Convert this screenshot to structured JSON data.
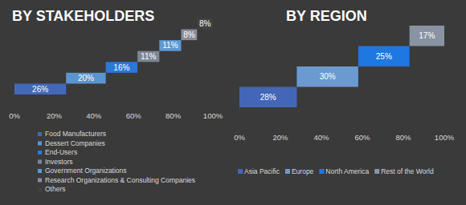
{
  "chart_data": [
    {
      "type": "waterfall",
      "title": "BY STAKEHOLDERS",
      "orientation": "horizontal",
      "categories": [
        "Food Manufacturers",
        "Dessert Companies",
        "End-Users",
        "Investors",
        "Government Organizations",
        "Research Organizations & Consulting Companies",
        "Others"
      ],
      "values": [
        26,
        20,
        16,
        11,
        11,
        8,
        8
      ],
      "value_labels": [
        "26%",
        "20%",
        "16%",
        "11%",
        "11%",
        "8%",
        "8%"
      ],
      "colors": [
        "#4468b8",
        "#5b95cf",
        "#2a78d8",
        "#7d8696",
        "#5c9ad4",
        "#8a8d9a",
        "#414141"
      ],
      "xlim": [
        0,
        100
      ],
      "xticks": [
        {
          "value": 0,
          "label": "0%"
        },
        {
          "value": 20,
          "label": "20%"
        },
        {
          "value": 40,
          "label": "40%"
        },
        {
          "value": 60,
          "label": "60%"
        },
        {
          "value": 80,
          "label": "80%"
        },
        {
          "value": 100,
          "label": "100%"
        }
      ],
      "data_labels": true,
      "tick_labels": "x",
      "grid": false,
      "legend": "bottom"
    },
    {
      "type": "waterfall",
      "title": "BY REGION",
      "orientation": "horizontal",
      "categories": [
        "Asia Pacific",
        "Europe",
        "North America",
        "Rest of the World"
      ],
      "values": [
        28,
        30,
        25,
        17
      ],
      "value_labels": [
        "28%",
        "30%",
        "25%",
        "17%"
      ],
      "colors": [
        "#4466b8",
        "#6a9ad0",
        "#1f77e0",
        "#8a93a3"
      ],
      "xlim": [
        0,
        100
      ],
      "xticks": [
        {
          "value": 0,
          "label": "0%"
        },
        {
          "value": 20,
          "label": "20%"
        },
        {
          "value": 40,
          "label": "40%"
        },
        {
          "value": 60,
          "label": "60%"
        },
        {
          "value": 80,
          "label": "80%"
        },
        {
          "value": 100,
          "label": "100%"
        }
      ],
      "data_labels": true,
      "tick_labels": "x",
      "grid": false,
      "legend": "bottom"
    }
  ]
}
